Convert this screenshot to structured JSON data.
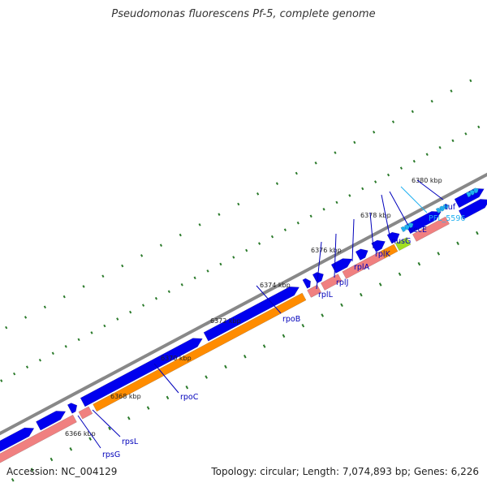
{
  "header": {
    "title": "Pseudomonas fluorescens Pf-5, complete genome"
  },
  "footer": {
    "accession_label": "Accession:",
    "accession": "NC_004129",
    "topology_label": "Topology:",
    "topology": "circular",
    "length_label": "Length:",
    "length": "7,074,893 bp",
    "genes_label": "Genes:",
    "genes": "6,226"
  },
  "colors": {
    "backbone": "#888888",
    "cds_forward": "#0000ee",
    "gene_track": "#f08080",
    "rrna_orange": "#ff8c00",
    "highlight_green": "#a0e020",
    "trna_cyan": "#20b0f0",
    "ticks": "#2a7a2a",
    "label_blue": "#0000bb",
    "label_cyan": "#20b0f0"
  },
  "scale_labels": [
    "6366 kbp",
    "6368 kbp",
    "6370 kbp",
    "6372 kbp",
    "6374 kbp",
    "6376 kbp",
    "6378 kbp",
    "6380 kbp"
  ],
  "genes": [
    {
      "name": "rpsG",
      "color": "label_blue"
    },
    {
      "name": "rpsL",
      "color": "label_blue"
    },
    {
      "name": "rpoC",
      "color": "label_blue"
    },
    {
      "name": "rpoB",
      "color": "label_blue"
    },
    {
      "name": "rplL",
      "color": "label_blue"
    },
    {
      "name": "rplJ",
      "color": "label_blue"
    },
    {
      "name": "rplA",
      "color": "label_blue"
    },
    {
      "name": "rplK",
      "color": "label_blue"
    },
    {
      "name": "nusG",
      "color": "label_blue"
    },
    {
      "name": "secE",
      "color": "label_blue"
    },
    {
      "name": "PFL_5596",
      "color": "label_cyan"
    },
    {
      "name": "tuf",
      "color": "label_blue"
    }
  ]
}
